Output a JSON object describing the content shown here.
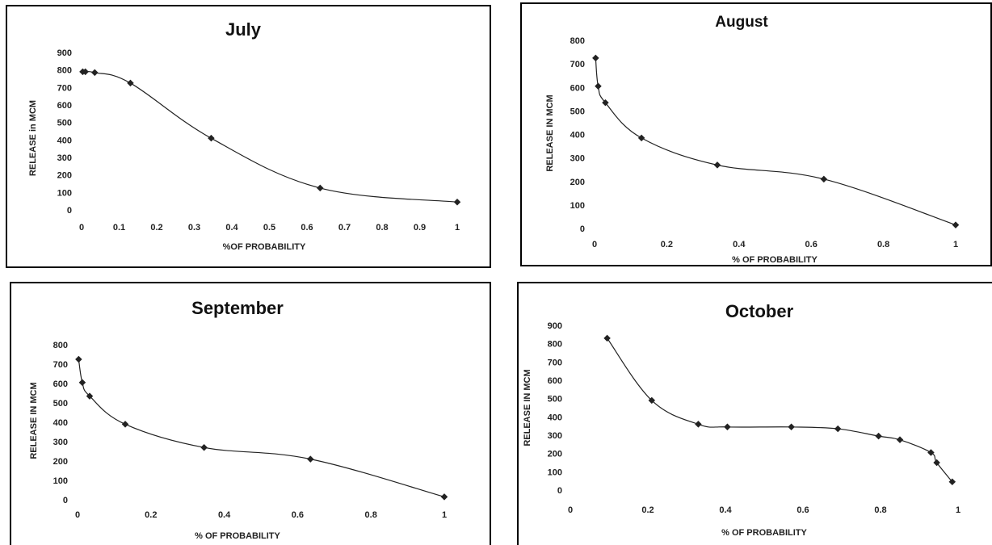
{
  "chart_data": [
    {
      "type": "line",
      "title": "July",
      "xlabel": "%OF PROBABILITY",
      "ylabel": "RELEASE in MCM",
      "xlim": [
        0,
        1
      ],
      "ylim": [
        0,
        900
      ],
      "x_ticks": [
        "0",
        "0.1",
        "0.2",
        "0.3",
        "0.4",
        "0.5",
        "0.6",
        "0.7",
        "0.8",
        "0.9",
        "1"
      ],
      "y_ticks": [
        "0",
        "100",
        "200",
        "300",
        "400",
        "500",
        "600",
        "700",
        "800",
        "900"
      ],
      "grid": false,
      "series": [
        {
          "x": [
            0.003,
            0.01,
            0.035,
            0.13,
            0.345,
            0.635,
            1.0
          ],
          "y": [
            790,
            790,
            785,
            725,
            410,
            125,
            45
          ]
        }
      ]
    },
    {
      "type": "line",
      "title": "August",
      "xlabel": "% OF PROBABILITY",
      "ylabel": "RELEASE IN MCM",
      "xlim": [
        0,
        1
      ],
      "ylim": [
        0,
        800
      ],
      "x_ticks": [
        "0",
        "0.2",
        "0.4",
        "0.6",
        "0.8",
        "1"
      ],
      "y_ticks": [
        "0",
        "100",
        "200",
        "300",
        "400",
        "500",
        "600",
        "700",
        "800"
      ],
      "grid": false,
      "series": [
        {
          "x": [
            0.003,
            0.01,
            0.03,
            0.13,
            0.34,
            0.635,
            1.0
          ],
          "y": [
            725,
            605,
            535,
            385,
            270,
            210,
            15
          ]
        }
      ]
    },
    {
      "type": "line",
      "title": "September",
      "xlabel": "% OF PROBABILITY",
      "ylabel": "RELEASE IN MCM",
      "xlim": [
        0,
        1
      ],
      "ylim": [
        0,
        800
      ],
      "x_ticks": [
        "0",
        "0.2",
        "0.4",
        "0.6",
        "0.8",
        "1"
      ],
      "y_ticks": [
        "0",
        "100",
        "200",
        "300",
        "400",
        "500",
        "600",
        "700",
        "800"
      ],
      "grid": false,
      "series": [
        {
          "x": [
            0.003,
            0.013,
            0.033,
            0.13,
            0.345,
            0.635,
            1.0
          ],
          "y": [
            725,
            605,
            535,
            390,
            270,
            210,
            15
          ]
        }
      ]
    },
    {
      "type": "line",
      "title": "October",
      "xlabel": "% OF PROBABILITY",
      "ylabel": "RELEASE IN MCM",
      "xlim": [
        0,
        1
      ],
      "ylim": [
        0,
        900
      ],
      "x_ticks": [
        "0",
        "0.2",
        "0.4",
        "0.6",
        "0.8",
        "1"
      ],
      "y_ticks": [
        "0",
        "100",
        "200",
        "300",
        "400",
        "500",
        "600",
        "700",
        "800",
        "900"
      ],
      "grid": false,
      "series": [
        {
          "x": [
            0.095,
            0.21,
            0.33,
            0.405,
            0.57,
            0.69,
            0.795,
            0.85,
            0.93,
            0.945,
            0.985
          ],
          "y": [
            830,
            490,
            360,
            345,
            345,
            335,
            295,
            275,
            205,
            150,
            45
          ]
        }
      ]
    }
  ]
}
